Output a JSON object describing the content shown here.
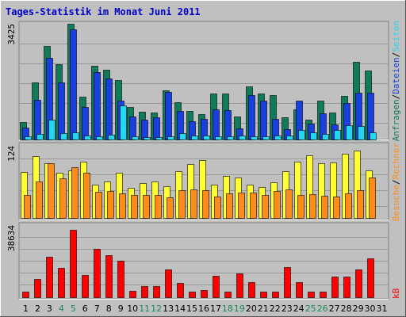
{
  "title": "Tages-Statistik im Monat Juni 2011",
  "colors": {
    "background": "#c0c0c0",
    "frame": "#ffffff",
    "title": "#0000cc",
    "grid": "#999999",
    "hits": "#0f7b5a",
    "files": "#1a3fe0",
    "pages": "#24d6f0",
    "visits": "#ffff33",
    "sites": "#ff8c1a",
    "kbytes": "#ff0000",
    "weekend_day": "#1a8a5a",
    "weekday": "#000000"
  },
  "chart_data": [
    {
      "type": "bar",
      "name": "top-panel",
      "ylabel_max": "3425",
      "ylim": [
        0,
        3425
      ],
      "x": [
        "1",
        "2",
        "3",
        "4",
        "5",
        "6",
        "7",
        "8",
        "9",
        "10",
        "11",
        "12",
        "13",
        "14",
        "15",
        "16",
        "17",
        "18",
        "19",
        "20",
        "21",
        "22",
        "23",
        "24",
        "25",
        "26",
        "27",
        "28",
        "29",
        "30",
        "31"
      ],
      "series": [
        {
          "name": "Anfragen",
          "color_key": "hits",
          "values": [
            510,
            1700,
            2770,
            2230,
            3425,
            1270,
            2170,
            2070,
            1750,
            970,
            810,
            800,
            1450,
            1100,
            850,
            750,
            1350,
            1350,
            690,
            1580,
            1350,
            1320,
            650,
            900,
            590,
            1160,
            790,
            1300,
            2290,
            2030,
            0
          ]
        },
        {
          "name": "Dateien",
          "color_key": "files",
          "values": [
            350,
            1170,
            2420,
            1700,
            3270,
            960,
            2000,
            1800,
            1140,
            680,
            580,
            660,
            1400,
            840,
            530,
            600,
            890,
            870,
            320,
            1320,
            1160,
            600,
            300,
            1160,
            470,
            780,
            440,
            1070,
            1390,
            1390,
            0
          ]
        },
        {
          "name": "Seiten",
          "color_key": "pages",
          "values": [
            90,
            160,
            580,
            190,
            200,
            110,
            90,
            130,
            1000,
            90,
            80,
            80,
            100,
            180,
            120,
            120,
            100,
            100,
            120,
            100,
            100,
            110,
            120,
            280,
            200,
            160,
            280,
            430,
            400,
            220,
            0
          ]
        }
      ]
    },
    {
      "type": "bar",
      "name": "middle-panel",
      "ylabel_max": "124",
      "ylim": [
        0,
        124
      ],
      "x": [
        "1",
        "2",
        "3",
        "4",
        "5",
        "6",
        "7",
        "8",
        "9",
        "10",
        "11",
        "12",
        "13",
        "14",
        "15",
        "16",
        "17",
        "18",
        "19",
        "20",
        "21",
        "22",
        "23",
        "24",
        "25",
        "26",
        "27",
        "28",
        "29",
        "30",
        "31"
      ],
      "series": [
        {
          "name": "Besuche",
          "color_key": "visits",
          "values": [
            79,
            106,
            94,
            78,
            82,
            97,
            57,
            62,
            77,
            52,
            60,
            62,
            54,
            81,
            92,
            100,
            57,
            72,
            69,
            57,
            53,
            61,
            81,
            97,
            107,
            94,
            96,
            111,
            116,
            82,
            0
          ]
        },
        {
          "name": "Rechner",
          "color_key": "sites",
          "values": [
            40,
            63,
            94,
            68,
            87,
            78,
            45,
            47,
            42,
            39,
            40,
            39,
            36,
            48,
            49,
            48,
            37,
            42,
            43,
            44,
            40,
            47,
            49,
            39,
            41,
            38,
            37,
            42,
            48,
            70,
            0
          ]
        }
      ]
    },
    {
      "type": "bar",
      "name": "bottom-panel",
      "ylabel_max": "38634",
      "ylim": [
        0,
        38634
      ],
      "x": [
        "1",
        "2",
        "3",
        "4",
        "5",
        "6",
        "7",
        "8",
        "9",
        "10",
        "11",
        "12",
        "13",
        "14",
        "15",
        "16",
        "17",
        "18",
        "19",
        "20",
        "21",
        "22",
        "23",
        "24",
        "25",
        "26",
        "27",
        "28",
        "29",
        "30",
        "31"
      ],
      "series": [
        {
          "name": "kB",
          "color_key": "kbytes",
          "values": [
            2800,
            9800,
            21600,
            15800,
            36000,
            11800,
            26000,
            22700,
            19700,
            3400,
            6000,
            6000,
            15000,
            7800,
            3000,
            4000,
            11500,
            2900,
            12700,
            8100,
            3000,
            2800,
            16000,
            8100,
            3000,
            3000,
            11200,
            11000,
            14700,
            20800,
            0
          ]
        }
      ]
    }
  ],
  "right_labels": {
    "top": [
      {
        "text": "Anfragen",
        "color_key": "hits"
      },
      {
        "text": "/",
        "color_key": "weekday"
      },
      {
        "text": "Dateien",
        "color_key": "files"
      },
      {
        "text": "/",
        "color_key": "weekday"
      },
      {
        "text": "Seiten",
        "color_key": "pages"
      }
    ],
    "middle": [
      {
        "text": "Besuche",
        "color_key": "sites"
      },
      {
        "text": "/",
        "color_key": "weekday"
      },
      {
        "text": "Rechner",
        "color_key": "sites"
      }
    ],
    "bottom": [
      {
        "text": "kB",
        "color_key": "kbytes"
      }
    ]
  },
  "weekend_days": [
    "4",
    "5",
    "11",
    "12",
    "18",
    "19",
    "25",
    "26"
  ]
}
